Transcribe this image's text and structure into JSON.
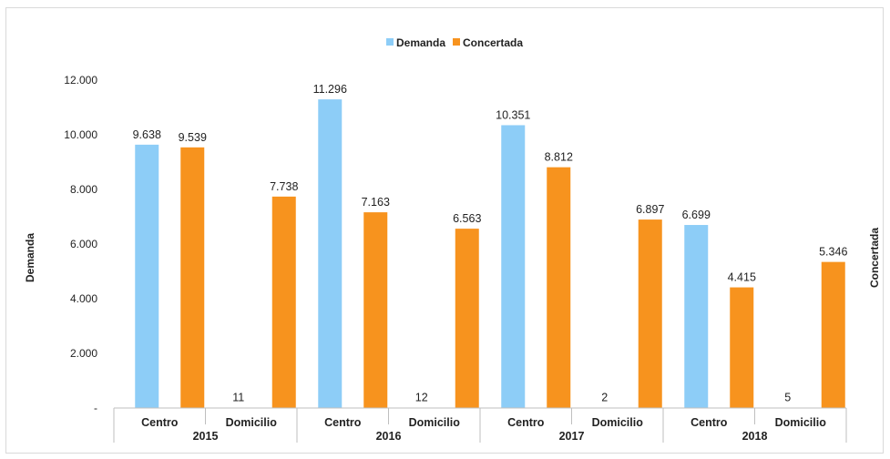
{
  "chart_data": {
    "type": "bar",
    "title": "",
    "ylabel": "Demanda",
    "y2label": "Concertada",
    "ylim": [
      0,
      12000
    ],
    "yticks": [
      "-",
      "2.000",
      "4.000",
      "6.000",
      "8.000",
      "10.000",
      "12.000"
    ],
    "legend_position": "top-center",
    "grid": false,
    "groups": [
      "2015",
      "2016",
      "2017",
      "2018"
    ],
    "subcategories": [
      "Centro",
      "Domicilio",
      "Centro",
      "Domicilio",
      "Centro",
      "Domicilio",
      "Centro",
      "Domicilio"
    ],
    "series": [
      {
        "name": "Demanda",
        "color": "#8dcdf7",
        "values": [
          9638,
          11,
          11296,
          12,
          10351,
          2,
          6699,
          5
        ],
        "labels": [
          "9.638",
          "11",
          "11.296",
          "12",
          "10.351",
          "2",
          "6.699",
          "5"
        ]
      },
      {
        "name": "Concertada",
        "color": "#f7931e",
        "values": [
          9539,
          7738,
          7163,
          6563,
          8812,
          6897,
          4415,
          5346
        ],
        "labels": [
          "9.539",
          "7.738",
          "7.163",
          "6.563",
          "8.812",
          "6.897",
          "4.415",
          "5.346"
        ]
      }
    ]
  }
}
